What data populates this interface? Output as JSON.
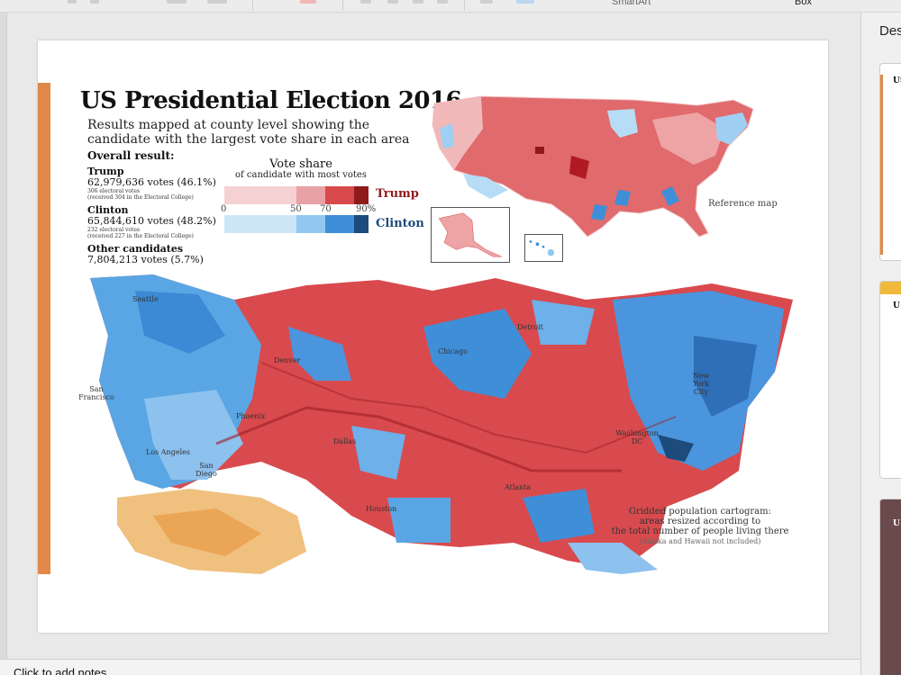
{
  "toolbar": {
    "smartart_label": "SmartArt",
    "textbox_label": "Box"
  },
  "slide": {
    "title": "US Presidential Election 2016",
    "subtitle": "Results mapped at county level showing the candidate with the largest vote share in each area",
    "overall_label": "Overall result:",
    "trump": {
      "name": "Trump",
      "votes": "62,979,636 votes (46.1%)",
      "ev1": "306 electoral votes",
      "ev2": "(received 304 in the Electoral College)"
    },
    "clinton": {
      "name": "Clinton",
      "votes": "65,844,610 votes (48.2%)",
      "ev1": "232 electoral votes",
      "ev2": "(received 227 in the Electoral College)"
    },
    "others": {
      "name": "Other candidates",
      "votes": "7,804,213 votes (5.7%)"
    },
    "legend": {
      "title": "Vote share",
      "subtitle": "of candidate with most votes",
      "ticks": [
        "0",
        "50",
        "70",
        "90%"
      ],
      "trump_label": "Trump",
      "clinton_label": "Clinton",
      "trump_colors": [
        "#f6d1d3",
        "#e8a2a5",
        "#d8494b",
        "#8e1a1c"
      ],
      "clinton_colors": [
        "#cde6f7",
        "#92c8ef",
        "#3f8fd8",
        "#1c4b7c"
      ]
    },
    "reference_label": "Reference map",
    "cartogram_caption": {
      "line1": "Gridded population cartogram:",
      "line2": "areas resized according to",
      "line3": "the total number of people living there",
      "note": "(Alaska and Hawaii not included)"
    },
    "cities": {
      "seattle": "Seattle",
      "sf": "San Francisco",
      "la": "Los Angeles",
      "sd": "San Diego",
      "phoenix": "Phoenix",
      "denver": "Denver",
      "dallas": "Dallas",
      "houston": "Houston",
      "chicago": "Chicago",
      "detroit": "Detroit",
      "atlanta": "Atlanta",
      "ny": "New York City",
      "dc": "Washington DC"
    }
  },
  "notes": {
    "placeholder": "Click to add notes"
  },
  "right_panel": {
    "title": "Des",
    "cards": [
      "US",
      "U",
      "U"
    ]
  }
}
